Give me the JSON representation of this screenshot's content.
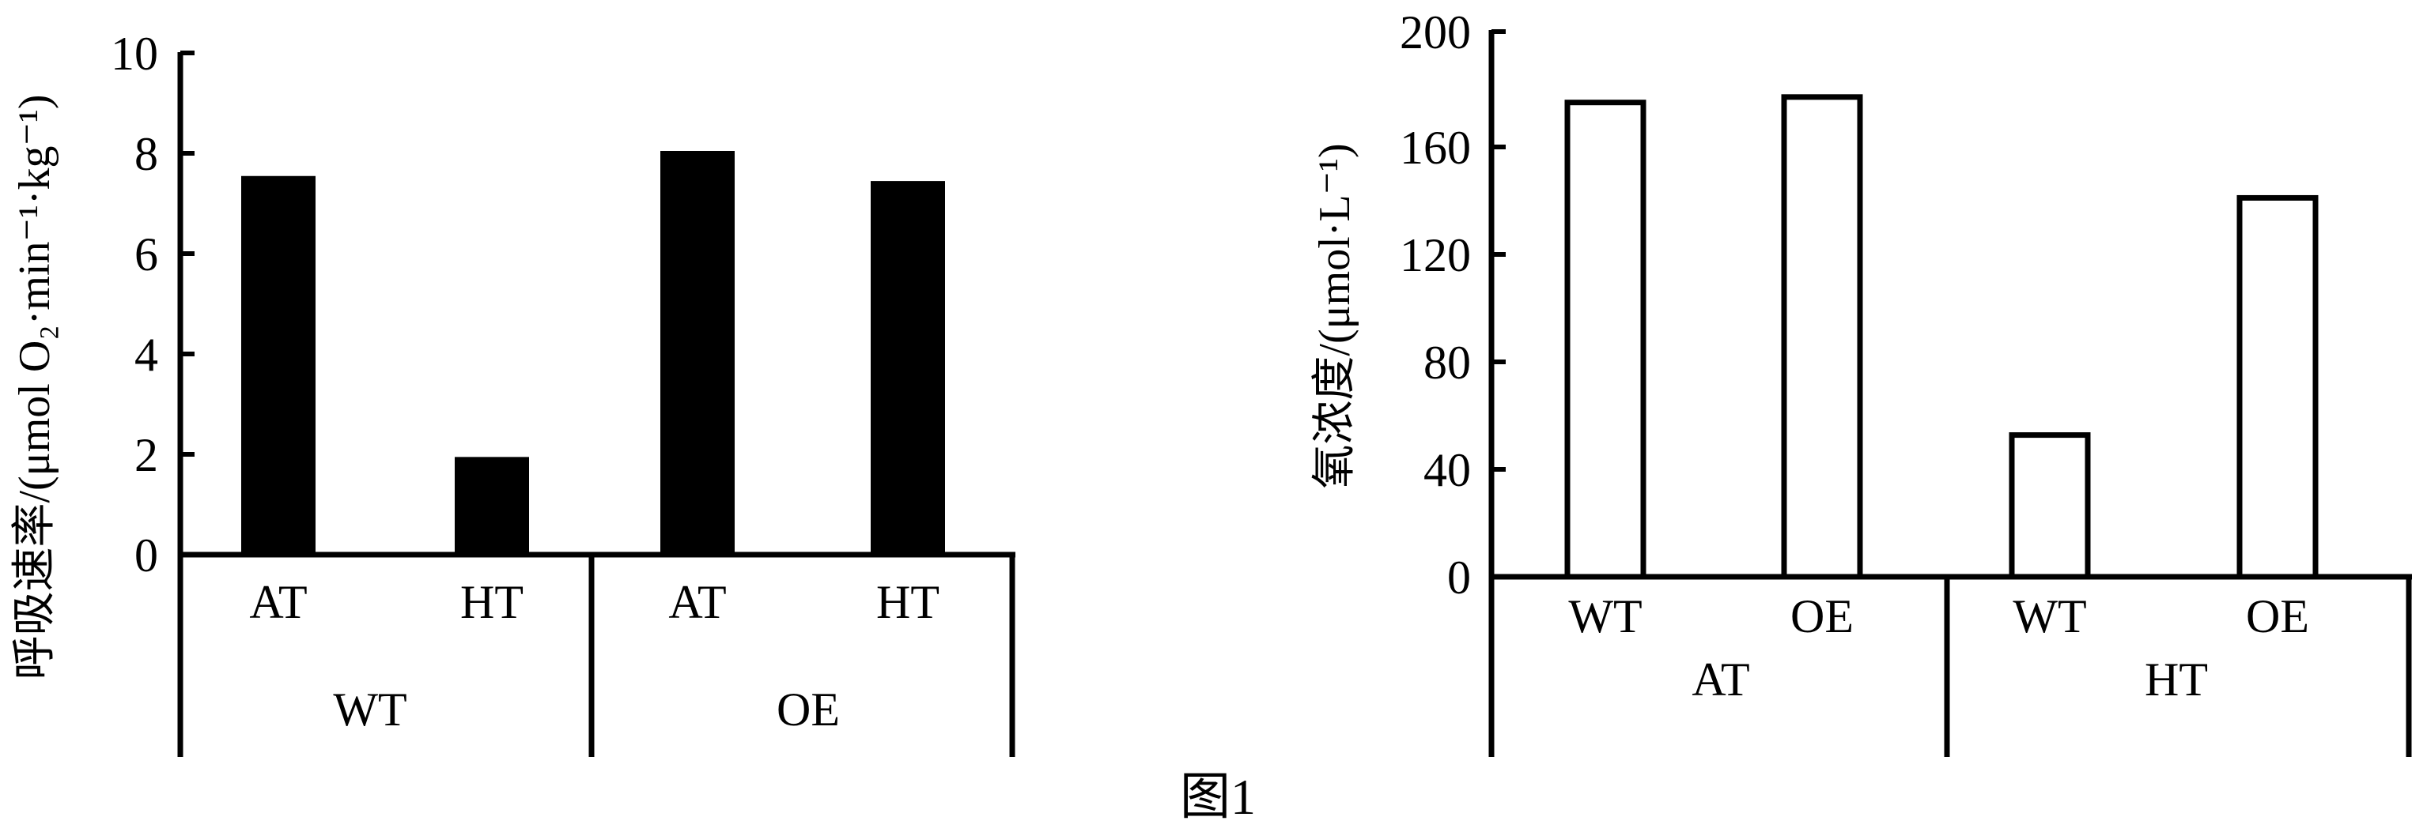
{
  "figure_caption": "图1",
  "chart_data": [
    {
      "type": "bar",
      "fill": "#000000",
      "ylabel": "呼吸速率/(μmol O₂·min⁻¹·kg⁻¹)",
      "ylim": [
        0,
        10
      ],
      "yticks": [
        "0",
        "2",
        "4",
        "6",
        "8",
        "10"
      ],
      "groups": [
        {
          "label": "WT",
          "categories": [
            "AT",
            "HT"
          ],
          "values": [
            7.5,
            1.9
          ]
        },
        {
          "label": "OE",
          "categories": [
            "AT",
            "HT"
          ],
          "values": [
            8.0,
            7.4
          ]
        }
      ]
    },
    {
      "type": "bar",
      "fill": "#ffffff",
      "ylabel": "氧浓度/(μmol·L⁻¹)",
      "ylim": [
        0,
        200
      ],
      "yticks": [
        "0",
        "40",
        "80",
        "120",
        "160",
        "200"
      ],
      "groups": [
        {
          "label": "AT",
          "categories": [
            "WT",
            "OE"
          ],
          "values": [
            174,
            176
          ]
        },
        {
          "label": "HT",
          "categories": [
            "WT",
            "OE"
          ],
          "values": [
            52,
            139
          ]
        }
      ]
    }
  ]
}
